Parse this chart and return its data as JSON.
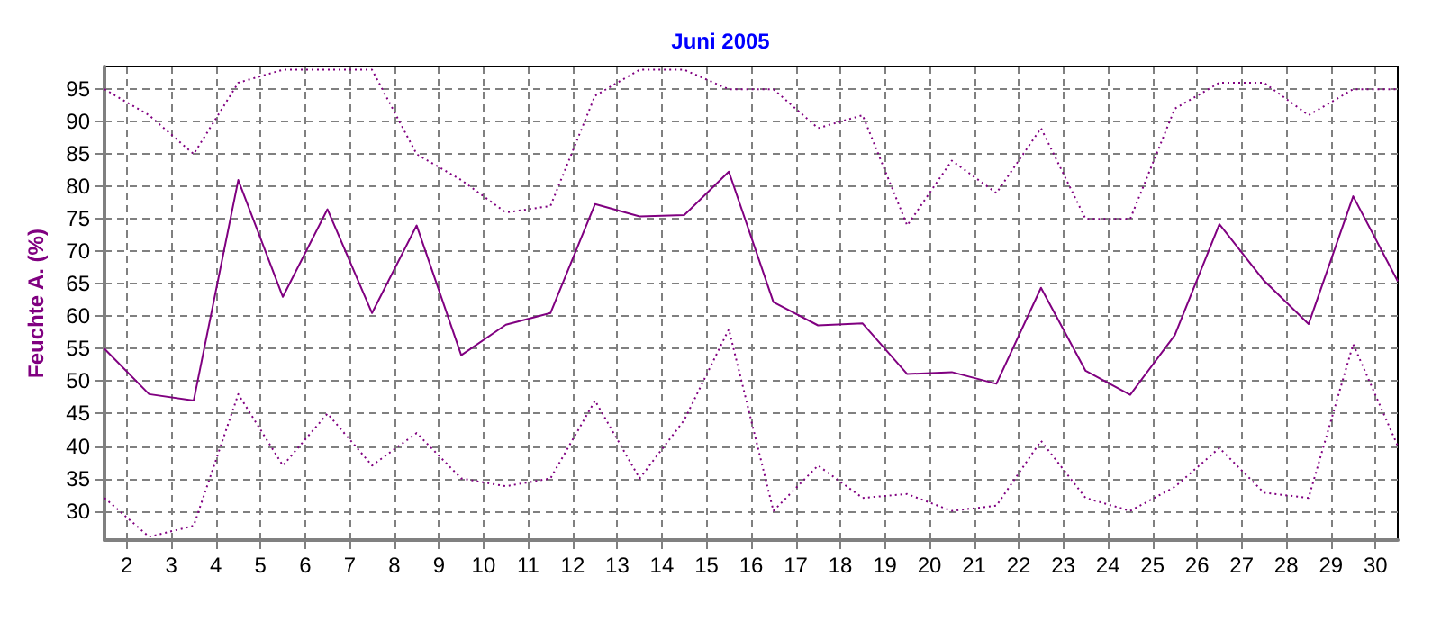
{
  "chart_data": {
    "type": "line",
    "title": "Juni 2005",
    "ylabel": "Feuchte A. (%)",
    "x": [
      1.5,
      2.5,
      3.5,
      4.5,
      5.5,
      6.5,
      7.5,
      8.5,
      9.5,
      10.5,
      11.5,
      12.5,
      13.5,
      14.5,
      15.5,
      16.5,
      17.5,
      18.5,
      19.5,
      20.5,
      21.5,
      22.5,
      23.5,
      24.5,
      25.5,
      26.5,
      27.5,
      28.5,
      29.5,
      30.5
    ],
    "xlim": [
      1.5,
      30.5
    ],
    "xticks": [
      2,
      3,
      4,
      5,
      6,
      7,
      8,
      9,
      10,
      11,
      12,
      13,
      14,
      15,
      16,
      17,
      18,
      19,
      20,
      21,
      22,
      23,
      24,
      25,
      26,
      27,
      28,
      29,
      30
    ],
    "ylim": [
      25.5,
      98.5
    ],
    "yticks": [
      30,
      35,
      40,
      45,
      50,
      55,
      60,
      65,
      70,
      75,
      80,
      85,
      90,
      95
    ],
    "grid": true,
    "marker": "none",
    "series": [
      {
        "color": "#800080",
        "line_style": "dotted",
        "values": [
          95,
          91,
          85,
          96,
          98,
          98,
          98,
          85,
          81,
          76,
          77,
          94,
          98,
          98,
          95,
          95,
          89,
          91,
          74,
          84,
          79,
          89,
          75,
          75,
          92,
          96,
          96,
          91,
          95,
          95
        ]
      },
      {
        "color": "#800080",
        "line_style": "solid",
        "values": [
          55,
          48,
          47,
          81,
          63,
          76.5,
          60.5,
          74,
          54,
          58.7,
          60.5,
          77.3,
          75.4,
          75.6,
          82.3,
          62.2,
          58.6,
          58.9,
          51.1,
          51.4,
          49.6,
          64.4,
          51.6,
          47.9,
          57.1,
          74.2,
          65.5,
          58.8,
          78.5,
          65.4
        ]
      },
      {
        "color": "#800080",
        "line_style": "dotted",
        "values": [
          32,
          26,
          27.7,
          48,
          37,
          45,
          37,
          42,
          35,
          33.8,
          35,
          47,
          35,
          44,
          58,
          30,
          37,
          32,
          32.6,
          30,
          30.8,
          40.8,
          32,
          30,
          33.7,
          39.7,
          32.8,
          32,
          55.7,
          40
        ]
      }
    ]
  }
}
